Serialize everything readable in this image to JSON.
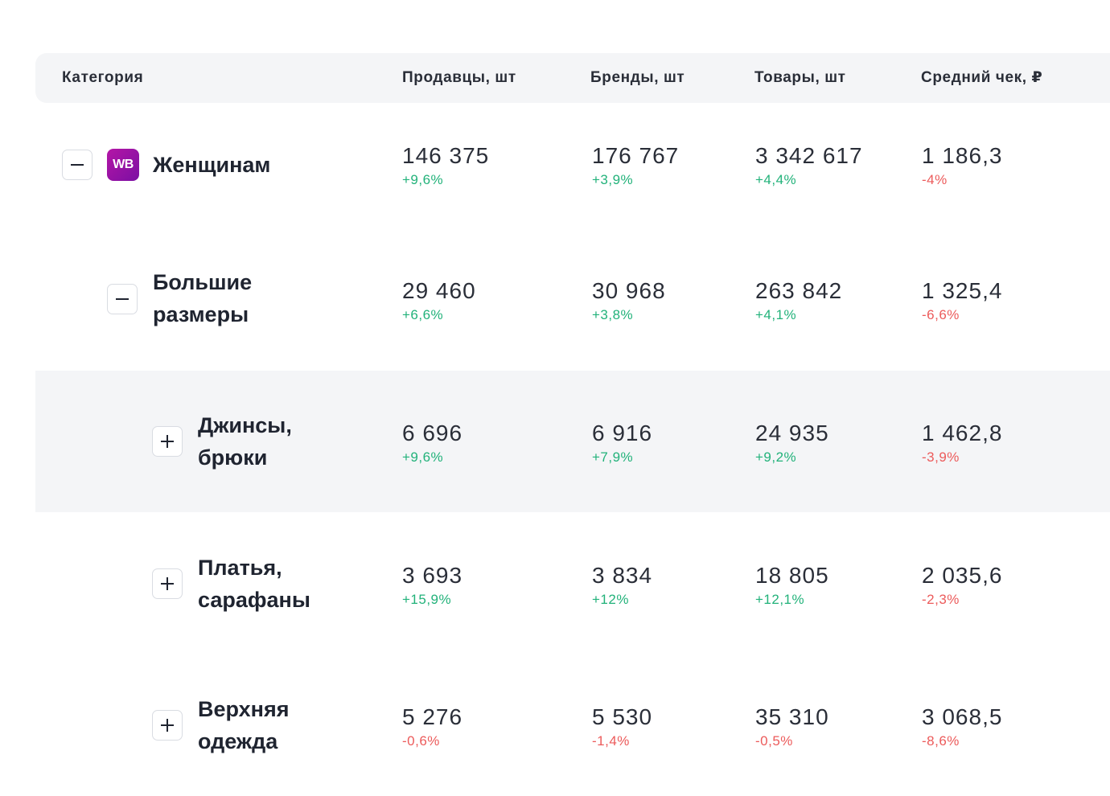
{
  "header": {
    "category": "Категория",
    "sellers": "Продавцы, шт",
    "brands": "Бренды, шт",
    "products": "Товары, шт",
    "avg_check": "Средний чек, ₽"
  },
  "rows": [
    {
      "name": "Женщинам",
      "logo": "WB",
      "toggle": "collapse",
      "sellers": "146 375",
      "sellers_delta": "+9,6%",
      "brands": "176 767",
      "brands_delta": "+3,9%",
      "products": "3 342 617",
      "products_delta": "+4,4%",
      "avg_check": "1 186,3",
      "avg_check_delta": "-4%"
    },
    {
      "name_line1": "Большие",
      "name_line2": "размеры",
      "toggle": "collapse",
      "sellers": "29 460",
      "sellers_delta": "+6,6%",
      "brands": "30 968",
      "brands_delta": "+3,8%",
      "products": "263 842",
      "products_delta": "+4,1%",
      "avg_check": "1 325,4",
      "avg_check_delta": "-6,6%"
    },
    {
      "name_line1": "Джинсы,",
      "name_line2": "брюки",
      "toggle": "expand",
      "sellers": "6 696",
      "sellers_delta": "+9,6%",
      "brands": "6 916",
      "brands_delta": "+7,9%",
      "products": "24 935",
      "products_delta": "+9,2%",
      "avg_check": "1 462,8",
      "avg_check_delta": "-3,9%"
    },
    {
      "name_line1": "Платья,",
      "name_line2": "сарафаны",
      "toggle": "expand",
      "sellers": "3 693",
      "sellers_delta": "+15,9%",
      "brands": "3 834",
      "brands_delta": "+12%",
      "products": "18 805",
      "products_delta": "+12,1%",
      "avg_check": "2 035,6",
      "avg_check_delta": "-2,3%"
    },
    {
      "name_line1": "Верхняя",
      "name_line2": "одежда",
      "toggle": "expand",
      "sellers": "5 276",
      "sellers_delta": "-0,6%",
      "brands": "5 530",
      "brands_delta": "-1,4%",
      "products": "35 310",
      "products_delta": "-0,5%",
      "avg_check": "3 068,5",
      "avg_check_delta": "-8,6%"
    }
  ],
  "colors": {
    "positive": "#22b27a",
    "negative": "#ec5b5b",
    "header_bg": "#f4f5f7",
    "highlight_bg": "#f4f5f7",
    "logo_gradient_start": "#b416a6",
    "logo_gradient_end": "#7b0fa3"
  },
  "icons": {
    "collapse": "minus-icon",
    "expand": "plus-icon"
  }
}
